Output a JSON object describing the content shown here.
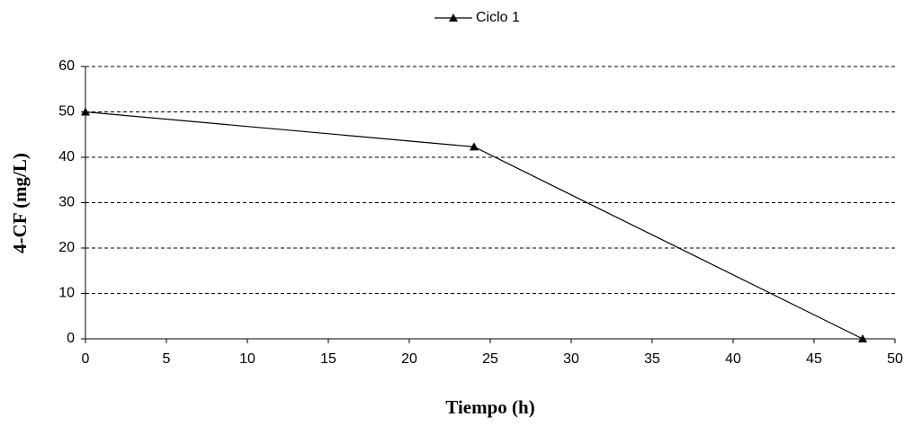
{
  "chart_data": {
    "type": "line",
    "x": [
      0,
      24,
      48
    ],
    "series": [
      {
        "name": "Ciclo 1",
        "color": "#000000",
        "marker": "triangle",
        "values": [
          50,
          42.3,
          0
        ]
      }
    ],
    "xlabel": "Tiempo (h)",
    "ylabel": "4-CF (mg/L)",
    "xlim": [
      0,
      50
    ],
    "xticks": [
      0,
      5,
      10,
      15,
      20,
      25,
      30,
      35,
      40,
      45,
      50
    ],
    "ylim": [
      0,
      60
    ],
    "yticks": [
      0,
      10,
      20,
      30,
      40,
      50,
      60
    ],
    "grid": true,
    "legend": "top"
  }
}
